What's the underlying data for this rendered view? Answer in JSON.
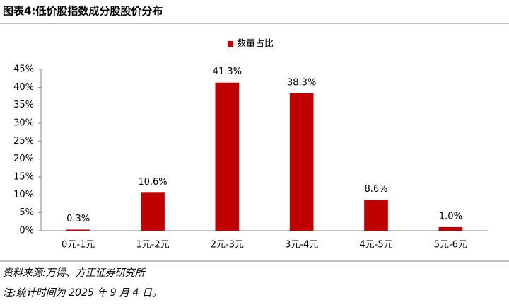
{
  "chart_data": {
    "type": "bar",
    "title": "图表4:低价股指数成分股股价分布",
    "categories": [
      "0元-1元",
      "1元-2元",
      "2元-3元",
      "3元-4元",
      "4元-5元",
      "5元-6元"
    ],
    "series": [
      {
        "name": "数量占比",
        "color": "#c00000",
        "values": [
          0.3,
          10.6,
          41.3,
          38.3,
          8.6,
          1.0
        ],
        "value_labels": [
          "0.3%",
          "10.6%",
          "41.3%",
          "38.3%",
          "8.6%",
          "1.0%"
        ]
      }
    ],
    "ylim": [
      0,
      45
    ],
    "yticks": [
      {
        "value": 0,
        "label": "0%"
      },
      {
        "value": 5,
        "label": "5%"
      },
      {
        "value": 10,
        "label": "10%"
      },
      {
        "value": 15,
        "label": "15%"
      },
      {
        "value": 20,
        "label": "20%"
      },
      {
        "value": 25,
        "label": "25%"
      },
      {
        "value": 30,
        "label": "30%"
      },
      {
        "value": 35,
        "label": "35%"
      },
      {
        "value": 40,
        "label": "40%"
      },
      {
        "value": 45,
        "label": "45%"
      }
    ],
    "grid": false,
    "legend": "top",
    "source": "资料来源:万得、方正证券研究所",
    "note": "注:统计时间为 2025 年 9 月 4 日。"
  }
}
